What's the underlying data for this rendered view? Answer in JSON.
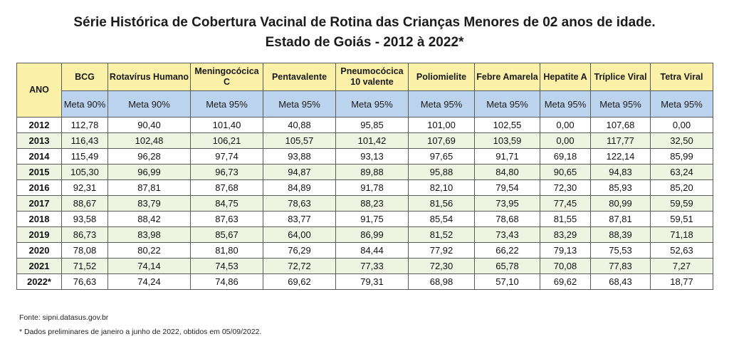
{
  "title": {
    "line1": "Série Histórica de Cobertura Vacinal de Rotina das Crianças Menores de 02 anos de idade.",
    "line2": "Estado de Goiás - 2012 à 2022*"
  },
  "table": {
    "year_header": "ANO",
    "columns": [
      {
        "name": "BCG",
        "meta": "Meta 90%"
      },
      {
        "name": "Rotavírus Humano",
        "meta": "Meta 90%"
      },
      {
        "name": "Meningocócica C",
        "meta": "Meta 95%"
      },
      {
        "name": "Pentavalente",
        "meta": "Meta 95%"
      },
      {
        "name": "Pneumocócica 10 valente",
        "meta": "Meta 95%"
      },
      {
        "name": "Poliomielite",
        "meta": "Meta 95%"
      },
      {
        "name": "Febre Amarela",
        "meta": "Meta 95%"
      },
      {
        "name": "Hepatite A",
        "meta": "Meta 95%"
      },
      {
        "name": "Tríplice Viral",
        "meta": "Meta 95%"
      },
      {
        "name": "Tetra Viral",
        "meta": "Meta 95%"
      }
    ],
    "rows": [
      {
        "year": "2012",
        "values": [
          "112,78",
          "90,40",
          "101,40",
          "40,88",
          "95,85",
          "101,00",
          "102,55",
          "0,00",
          "107,68",
          "0,00"
        ]
      },
      {
        "year": "2013",
        "values": [
          "116,43",
          "102,48",
          "106,21",
          "105,57",
          "101,42",
          "107,69",
          "103,59",
          "0,00",
          "117,77",
          "32,50"
        ]
      },
      {
        "year": "2014",
        "values": [
          "115,49",
          "96,28",
          "97,74",
          "93,88",
          "93,13",
          "97,65",
          "91,71",
          "69,18",
          "122,14",
          "85,99"
        ]
      },
      {
        "year": "2015",
        "values": [
          "105,30",
          "96,99",
          "96,73",
          "94,87",
          "89,88",
          "95,88",
          "84,80",
          "90,65",
          "94,83",
          "63,24"
        ]
      },
      {
        "year": "2016",
        "values": [
          "92,31",
          "87,81",
          "87,68",
          "84,89",
          "91,78",
          "82,10",
          "79,54",
          "72,30",
          "85,93",
          "85,20"
        ]
      },
      {
        "year": "2017",
        "values": [
          "88,67",
          "83,79",
          "84,75",
          "78,63",
          "88,23",
          "81,56",
          "73,95",
          "77,45",
          "80,99",
          "59,59"
        ]
      },
      {
        "year": "2018",
        "values": [
          "93,58",
          "88,42",
          "87,63",
          "83,77",
          "91,75",
          "85,54",
          "78,68",
          "81,55",
          "87,81",
          "59,51"
        ]
      },
      {
        "year": "2019",
        "values": [
          "86,73",
          "83,98",
          "85,67",
          "64,00",
          "86,99",
          "81,52",
          "73,43",
          "83,29",
          "88,39",
          "71,18"
        ]
      },
      {
        "year": "2020",
        "values": [
          "78,08",
          "80,22",
          "81,80",
          "76,29",
          "84,44",
          "77,92",
          "66,22",
          "79,13",
          "75,53",
          "52,63"
        ]
      },
      {
        "year": "2021",
        "values": [
          "71,52",
          "74,14",
          "74,53",
          "72,72",
          "77,33",
          "72,30",
          "65,78",
          "70,08",
          "77,83",
          "7,27"
        ]
      },
      {
        "year": "2022*",
        "values": [
          "76,63",
          "74,24",
          "74,86",
          "69,62",
          "79,31",
          "68,98",
          "57,10",
          "69,62",
          "68,43",
          "18,77"
        ]
      }
    ]
  },
  "footnotes": {
    "source": "Fonte: sipni.datasus.gov.br",
    "note": "* Dados preliminares de janeiro a junho de 2022, obtidos em 05/09/2022."
  },
  "colors": {
    "header_yellow": "#fbf0a8",
    "meta_blue": "#bcd3ee",
    "row_shade": "#eef3e2"
  }
}
